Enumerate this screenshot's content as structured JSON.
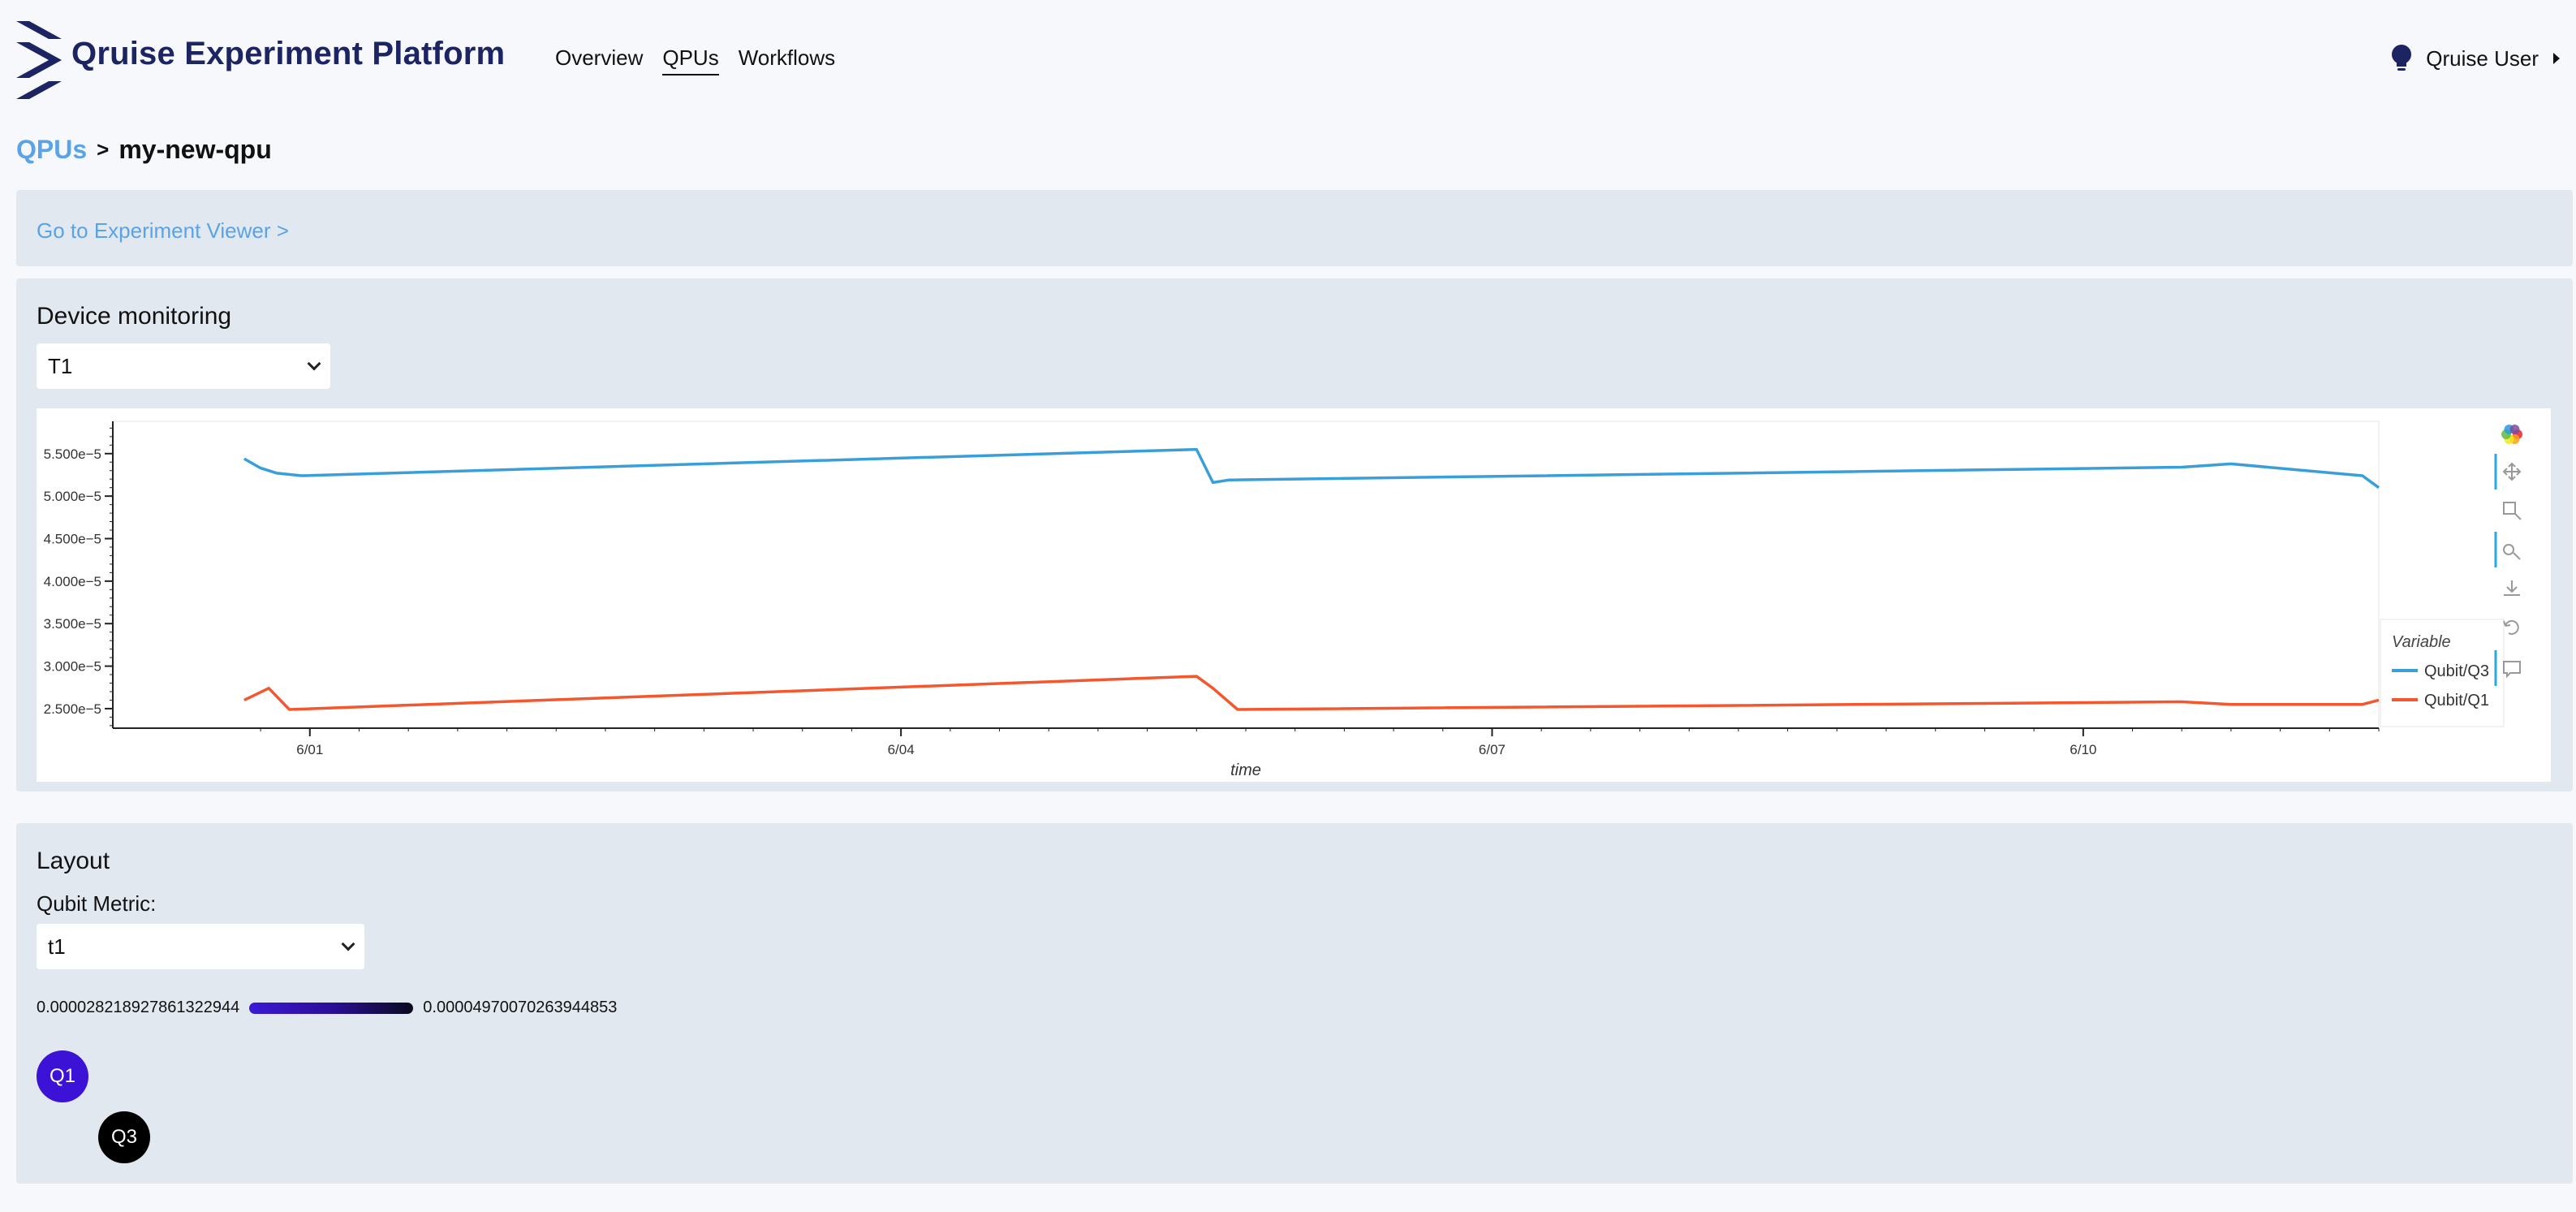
{
  "app": {
    "title": "Qruise Experiment Platform"
  },
  "nav": {
    "items": [
      {
        "label": "Overview"
      },
      {
        "label": "QPUs"
      },
      {
        "label": "Workflows"
      }
    ]
  },
  "user": {
    "name": "Qruise User"
  },
  "breadcrumb": {
    "parent": "QPUs",
    "separator": ">",
    "current": "my-new-qpu"
  },
  "viewer_link": {
    "label": "Go to Experiment Viewer >"
  },
  "monitoring": {
    "title": "Device monitoring",
    "selected_metric": "T1"
  },
  "layout": {
    "title": "Layout",
    "metric_label": "Qubit Metric:",
    "selected_metric": "t1",
    "scale_min": "0.000028218927861322944",
    "scale_max": "0.000049700702639448​53",
    "qubits": [
      {
        "label": "Q1",
        "color": "#3b12d6"
      },
      {
        "label": "Q3",
        "color": "#000000"
      }
    ]
  },
  "colors": {
    "accent": "#5aa3e6",
    "brand": "#1c2461",
    "panel": "#e2e8f0"
  },
  "chart_data": {
    "type": "line",
    "xlabel": "time",
    "ylabel": "",
    "xlim": [
      "2024-05-31T00:00",
      "2024-06-11T12:00"
    ],
    "ylim": [
      2.27e-05,
      5.88e-05
    ],
    "x_ticks": [
      "6/01",
      "6/04",
      "6/07",
      "6/10"
    ],
    "y_ticks": [
      "2.500e−5",
      "3.000e−5",
      "3.500e−5",
      "4.000e−5",
      "4.500e−5",
      "5.000e−5",
      "5.500e−5"
    ],
    "legend": {
      "title": "Variable",
      "placement": "right"
    },
    "grid": false,
    "series": [
      {
        "name": "Qubit/Q3",
        "color": "#3a9fd8",
        "points": [
          [
            "2024-05-31T16:00",
            5.44e-05
          ],
          [
            "2024-05-31T18:00",
            5.33e-05
          ],
          [
            "2024-05-31T20:00",
            5.27e-05
          ],
          [
            "2024-05-31T23:00",
            5.24e-05
          ],
          [
            "2024-06-05T12:00",
            5.55e-05
          ],
          [
            "2024-06-05T14:00",
            5.16e-05
          ],
          [
            "2024-06-05T16:00",
            5.19e-05
          ],
          [
            "2024-06-10T12:00",
            5.34e-05
          ],
          [
            "2024-06-10T18:00",
            5.38e-05
          ],
          [
            "2024-06-11T10:00",
            5.24e-05
          ],
          [
            "2024-06-11T12:00",
            5.1e-05
          ]
        ]
      },
      {
        "name": "Qubit/Q1",
        "color": "#f4572d",
        "points": [
          [
            "2024-05-31T16:00",
            2.6e-05
          ],
          [
            "2024-05-31T19:00",
            2.74e-05
          ],
          [
            "2024-05-31T21:30",
            2.49e-05
          ],
          [
            "2024-06-05T12:00",
            2.88e-05
          ],
          [
            "2024-06-05T14:00",
            2.74e-05
          ],
          [
            "2024-06-05T17:00",
            2.49e-05
          ],
          [
            "2024-06-10T12:00",
            2.58e-05
          ],
          [
            "2024-06-10T18:00",
            2.55e-05
          ],
          [
            "2024-06-11T10:00",
            2.55e-05
          ],
          [
            "2024-06-11T12:00",
            2.6e-05
          ]
        ]
      }
    ]
  },
  "toolbar": {
    "icons": [
      "bokeh-logo-icon",
      "pan-icon",
      "box-zoom-icon",
      "wheel-zoom-icon",
      "save-icon",
      "reset-icon",
      "hover-icon"
    ]
  }
}
